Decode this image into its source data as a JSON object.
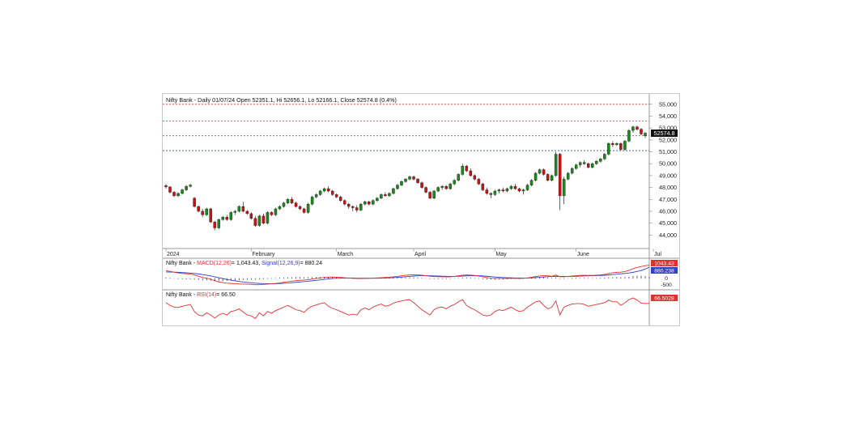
{
  "header": {
    "title": "Nifty Bank - Daily 01/07/24 Open 52351.1, Hi 52656.1, Lo 52166.1, Close 52574.8 (0.4%)"
  },
  "colors": {
    "up": "#1a8a1a",
    "down": "#cc1111",
    "resistance": "#e03030",
    "support": "#3040c8",
    "macd": "#e03030",
    "signal": "#3040c8",
    "rsi": "#e03030"
  },
  "chart_data": [
    {
      "type": "candlestick",
      "title": "Nifty Bank - Daily 01/07/24 Open 52351.1, Hi 52656.1, Lo 52166.1, Close 52574.8 (0.4%)",
      "ylim": [
        43000,
        55600
      ],
      "y_ticks": [
        "44,000",
        "45,000",
        "46,000",
        "47,000",
        "48,000",
        "49,000",
        "50,000",
        "51,000",
        "52,000",
        "53,000",
        "54,000",
        "55,000"
      ],
      "y_tick_values": [
        44000,
        45000,
        46000,
        47000,
        48000,
        49000,
        50000,
        51000,
        52000,
        53000,
        54000,
        55000
      ],
      "x_labels": [
        {
          "label": "2024",
          "index": 0
        },
        {
          "label": "February",
          "index": 21
        },
        {
          "label": "March",
          "index": 42
        },
        {
          "label": "April",
          "index": 61
        },
        {
          "label": "May",
          "index": 81
        },
        {
          "label": "June",
          "index": 101
        },
        {
          "label": "Jul",
          "index": 120
        }
      ],
      "last_price_label": "52574.8",
      "horizontal_lines": [
        {
          "value": 55000,
          "style": "resistance"
        },
        {
          "value": 53600,
          "style": "resistance"
        },
        {
          "value": 52350,
          "style": "support"
        },
        {
          "value": 51100,
          "style": "support"
        }
      ],
      "candles": [
        [
          48150,
          48300,
          47900,
          48050
        ],
        [
          48050,
          48100,
          47500,
          47600
        ],
        [
          47600,
          47700,
          47200,
          47300
        ],
        [
          47300,
          47600,
          47200,
          47500
        ],
        [
          47500,
          47900,
          47400,
          47800
        ],
        [
          47800,
          48200,
          47700,
          48100
        ],
        [
          48100,
          48300,
          48000,
          48200
        ],
        [
          47100,
          47200,
          46300,
          46400
        ],
        [
          46400,
          46500,
          45900,
          46000
        ],
        [
          46000,
          46200,
          45500,
          45700
        ],
        [
          45700,
          46300,
          45600,
          46200
        ],
        [
          46200,
          46300,
          45000,
          45100
        ],
        [
          45100,
          45200,
          44400,
          44600
        ],
        [
          44600,
          45400,
          44500,
          45300
        ],
        [
          45300,
          45600,
          45200,
          45500
        ],
        [
          45500,
          45700,
          45200,
          45300
        ],
        [
          45300,
          46000,
          45200,
          45900
        ],
        [
          45900,
          46100,
          45700,
          46000
        ],
        [
          46000,
          46500,
          45900,
          46400
        ],
        [
          46400,
          46800,
          45900,
          46000
        ],
        [
          46000,
          46100,
          45700,
          45800
        ],
        [
          45800,
          45900,
          45300,
          45400
        ],
        [
          45400,
          45600,
          44700,
          44800
        ],
        [
          44800,
          45700,
          44700,
          45600
        ],
        [
          45600,
          45800,
          44900,
          45000
        ],
        [
          45000,
          46000,
          44900,
          45900
        ],
        [
          45900,
          46000,
          45600,
          45700
        ],
        [
          45700,
          46300,
          45600,
          46200
        ],
        [
          46200,
          46500,
          46100,
          46400
        ],
        [
          46400,
          46800,
          46300,
          46700
        ],
        [
          46700,
          47100,
          46600,
          47000
        ],
        [
          47000,
          47200,
          46600,
          46700
        ],
        [
          46700,
          46800,
          46300,
          46400
        ],
        [
          46400,
          46500,
          46100,
          46200
        ],
        [
          46200,
          46300,
          45800,
          45900
        ],
        [
          45900,
          46700,
          45800,
          46600
        ],
        [
          46600,
          47300,
          46500,
          47200
        ],
        [
          47200,
          47500,
          47100,
          47400
        ],
        [
          47400,
          47800,
          47300,
          47700
        ],
        [
          47700,
          48000,
          47600,
          47900
        ],
        [
          47900,
          48100,
          47600,
          47700
        ],
        [
          47700,
          47800,
          47300,
          47400
        ],
        [
          47400,
          47500,
          47100,
          47200
        ],
        [
          47200,
          47300,
          46800,
          46900
        ],
        [
          46900,
          47000,
          46500,
          46600
        ],
        [
          46600,
          46700,
          46200,
          46400
        ],
        [
          46400,
          46500,
          46000,
          46300
        ],
        [
          46300,
          46500,
          45900,
          46100
        ],
        [
          46100,
          46700,
          46000,
          46600
        ],
        [
          46600,
          46900,
          46500,
          46800
        ],
        [
          46800,
          46900,
          46500,
          46600
        ],
        [
          46600,
          47000,
          46500,
          46900
        ],
        [
          46900,
          47200,
          46800,
          47100
        ],
        [
          47100,
          47500,
          47000,
          47400
        ],
        [
          47400,
          47600,
          47200,
          47300
        ],
        [
          47300,
          47600,
          47200,
          47500
        ],
        [
          47500,
          48000,
          47400,
          47900
        ],
        [
          47900,
          48300,
          47800,
          48200
        ],
        [
          48200,
          48600,
          48100,
          48500
        ],
        [
          48500,
          48800,
          48400,
          48700
        ],
        [
          48700,
          49000,
          48600,
          48900
        ],
        [
          48900,
          49000,
          48600,
          48700
        ],
        [
          48700,
          48800,
          48300,
          48400
        ],
        [
          48400,
          48500,
          47900,
          48000
        ],
        [
          48000,
          48100,
          47500,
          47600
        ],
        [
          47600,
          47700,
          47000,
          47100
        ],
        [
          47100,
          47800,
          47000,
          47700
        ],
        [
          47700,
          48100,
          47600,
          48000
        ],
        [
          48000,
          48200,
          47800,
          48100
        ],
        [
          48100,
          48200,
          47800,
          47900
        ],
        [
          47900,
          48400,
          47800,
          48300
        ],
        [
          48300,
          48700,
          48200,
          48600
        ],
        [
          48600,
          49200,
          48500,
          49100
        ],
        [
          49100,
          50000,
          49000,
          49800
        ],
        [
          49800,
          49900,
          49300,
          49400
        ],
        [
          49400,
          49600,
          48900,
          49000
        ],
        [
          49000,
          49100,
          48600,
          48700
        ],
        [
          48700,
          48800,
          48200,
          48300
        ],
        [
          48300,
          48400,
          47700,
          47800
        ],
        [
          47800,
          48000,
          47400,
          47500
        ],
        [
          47500,
          47600,
          47100,
          47400
        ],
        [
          47400,
          47800,
          47300,
          47700
        ],
        [
          47700,
          47900,
          47500,
          47800
        ],
        [
          47800,
          48000,
          47600,
          47700
        ],
        [
          47700,
          48000,
          47600,
          47900
        ],
        [
          47900,
          48200,
          47800,
          48100
        ],
        [
          48100,
          48300,
          47800,
          47900
        ],
        [
          47900,
          48000,
          47600,
          47700
        ],
        [
          47700,
          47900,
          47400,
          47800
        ],
        [
          47800,
          48300,
          47700,
          48200
        ],
        [
          48200,
          48700,
          48100,
          48600
        ],
        [
          48600,
          49300,
          48500,
          49200
        ],
        [
          49200,
          49600,
          49100,
          49500
        ],
        [
          49500,
          49600,
          49000,
          49100
        ],
        [
          49100,
          49200,
          48500,
          48600
        ],
        [
          48600,
          49100,
          48500,
          49000
        ],
        [
          49000,
          51000,
          48900,
          50800
        ],
        [
          50800,
          50900,
          46100,
          47300
        ],
        [
          47300,
          48900,
          46600,
          48700
        ],
        [
          48700,
          49300,
          48600,
          49200
        ],
        [
          49200,
          49700,
          49100,
          49600
        ],
        [
          49600,
          50000,
          49500,
          49900
        ],
        [
          49900,
          50200,
          49700,
          50100
        ],
        [
          50100,
          50300,
          49900,
          50000
        ],
        [
          50000,
          50100,
          49600,
          49700
        ],
        [
          49700,
          50100,
          49600,
          50000
        ],
        [
          50000,
          50300,
          49900,
          50200
        ],
        [
          50200,
          50500,
          50100,
          50400
        ],
        [
          50400,
          50900,
          50300,
          50800
        ],
        [
          50800,
          51800,
          50700,
          51700
        ],
        [
          51700,
          51900,
          51400,
          51600
        ],
        [
          51600,
          51800,
          51500,
          51700
        ],
        [
          51700,
          51800,
          51100,
          51200
        ],
        [
          51200,
          52000,
          51100,
          51900
        ],
        [
          51900,
          52900,
          51800,
          52800
        ],
        [
          52800,
          53200,
          52600,
          53100
        ],
        [
          53100,
          53200,
          52800,
          52900
        ],
        [
          52900,
          53000,
          52400,
          52500
        ],
        [
          52351.1,
          52656.1,
          52166.1,
          52574.8
        ]
      ]
    },
    {
      "type": "line",
      "title": "MACD(12,26) = 1,043.43, Signal(12,26,9) = 880.24",
      "name_macd": "MACD(12,26)",
      "macd_value": "= 1,043.43",
      "name_signal": "Signal(12,26,9)",
      "signal_value": "= 880.24",
      "ylim": [
        -800,
        1400
      ],
      "y_ticks": [
        "0",
        "-500"
      ],
      "y_tick_values": [
        0,
        -500
      ],
      "value_labels": [
        "1043.43",
        "880.238"
      ],
      "macd": [
        600,
        550,
        480,
        420,
        380,
        350,
        330,
        260,
        150,
        60,
        0,
        -80,
        -200,
        -300,
        -350,
        -400,
        -420,
        -440,
        -460,
        -470,
        -480,
        -500,
        -520,
        -520,
        -500,
        -470,
        -450,
        -420,
        -380,
        -330,
        -280,
        -240,
        -200,
        -170,
        -150,
        -120,
        -70,
        -20,
        20,
        60,
        80,
        90,
        80,
        60,
        40,
        10,
        -10,
        -30,
        -30,
        -20,
        -10,
        0,
        20,
        40,
        60,
        80,
        110,
        150,
        190,
        230,
        260,
        280,
        270,
        240,
        200,
        150,
        130,
        120,
        110,
        100,
        110,
        140,
        190,
        240,
        260,
        250,
        220,
        170,
        110,
        50,
        0,
        -20,
        -20,
        -30,
        -20,
        -10,
        -10,
        -20,
        -10,
        20,
        80,
        130,
        180,
        200,
        190,
        150,
        250,
        120,
        110,
        140,
        170,
        200,
        220,
        230,
        220,
        220,
        240,
        260,
        300,
        380,
        430,
        470,
        480,
        530,
        630,
        760,
        860,
        930,
        1000,
        1043.43
      ],
      "signal": [
        500,
        490,
        480,
        470,
        450,
        430,
        410,
        380,
        340,
        290,
        240,
        180,
        110,
        40,
        -30,
        -100,
        -160,
        -210,
        -260,
        -300,
        -340,
        -370,
        -400,
        -420,
        -430,
        -440,
        -440,
        -440,
        -430,
        -410,
        -390,
        -360,
        -330,
        -300,
        -270,
        -240,
        -210,
        -170,
        -130,
        -90,
        -60,
        -30,
        -10,
        0,
        10,
        10,
        10,
        0,
        0,
        0,
        -5,
        -5,
        0,
        5,
        15,
        30,
        45,
        65,
        90,
        115,
        145,
        170,
        190,
        200,
        200,
        190,
        180,
        170,
        160,
        150,
        145,
        145,
        155,
        170,
        185,
        195,
        200,
        195,
        180,
        155,
        125,
        95,
        70,
        50,
        35,
        25,
        15,
        10,
        5,
        10,
        25,
        45,
        70,
        95,
        115,
        125,
        150,
        145,
        140,
        140,
        145,
        155,
        165,
        180,
        190,
        200,
        210,
        220,
        235,
        260,
        290,
        320,
        350,
        380,
        420,
        470,
        540,
        610,
        730,
        880.24
      ]
    },
    {
      "type": "line",
      "title": "RSI(14) = 66.50",
      "name": "RSI(14)",
      "rsi_value": "= 66.50",
      "value_label": "66.5028",
      "ylim": [
        20,
        90
      ],
      "rsi": [
        68,
        62,
        58,
        57,
        60,
        62,
        64,
        48,
        40,
        38,
        45,
        40,
        33,
        40,
        44,
        40,
        48,
        50,
        54,
        47,
        40,
        38,
        32,
        45,
        38,
        48,
        44,
        50,
        54,
        58,
        62,
        57,
        52,
        50,
        46,
        55,
        60,
        63,
        66,
        68,
        60,
        55,
        52,
        48,
        44,
        40,
        42,
        40,
        52,
        56,
        52,
        58,
        62,
        65,
        60,
        62,
        67,
        70,
        72,
        74,
        75,
        68,
        60,
        52,
        46,
        40,
        52,
        57,
        58,
        54,
        60,
        64,
        70,
        75,
        62,
        56,
        52,
        46,
        40,
        38,
        40,
        48,
        52,
        50,
        54,
        58,
        52,
        48,
        50,
        58,
        64,
        70,
        72,
        62,
        54,
        58,
        72,
        40,
        58,
        62,
        65,
        66,
        66,
        64,
        60,
        62,
        64,
        66,
        68,
        74,
        70,
        70,
        62,
        68,
        75,
        79,
        74,
        67,
        66,
        66.5
      ]
    }
  ]
}
